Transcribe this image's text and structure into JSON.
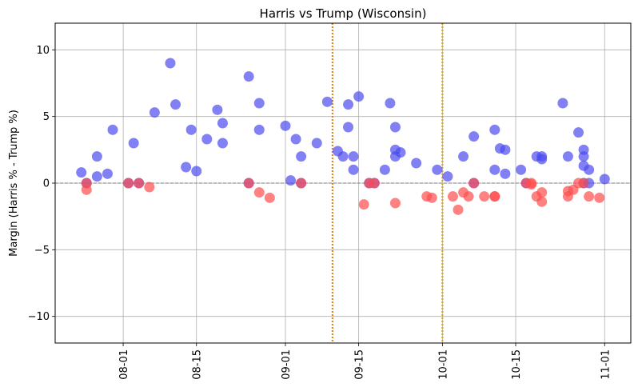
{
  "chart_data": {
    "type": "scatter",
    "title": "Harris vs Trump (Wisconsin)",
    "xlabel": "",
    "ylabel": "Margin (Harris % - Trump %)",
    "x_type": "date",
    "xlim": [
      "2024-07-19",
      "2024-11-06"
    ],
    "ylim": [
      -12,
      12
    ],
    "grid": true,
    "x_ticks": [
      {
        "date": "2024-08-01",
        "label": "08-01"
      },
      {
        "date": "2024-08-15",
        "label": "08-15"
      },
      {
        "date": "2024-09-01",
        "label": "09-01"
      },
      {
        "date": "2024-09-15",
        "label": "09-15"
      },
      {
        "date": "2024-10-01",
        "label": "10-01"
      },
      {
        "date": "2024-10-15",
        "label": "10-15"
      },
      {
        "date": "2024-11-01",
        "label": "11-01"
      }
    ],
    "y_ticks": [
      {
        "value": -10,
        "label": "−10"
      },
      {
        "value": -5,
        "label": "−5"
      },
      {
        "value": 0,
        "label": "0"
      },
      {
        "value": 5,
        "label": "5"
      },
      {
        "value": 10,
        "label": "10"
      }
    ],
    "zero_line": {
      "value": 0,
      "color": "#808080"
    },
    "vertical_lines": [
      {
        "date": "2024-09-10",
        "color": "#e08a1e"
      },
      {
        "date": "2024-10-01",
        "color": "#d9a520"
      }
    ],
    "series": [
      {
        "color": "#4b4bf0",
        "points": [
          {
            "x": "2024-07-24",
            "y": 0.8
          },
          {
            "x": "2024-07-25",
            "y": 0.0
          },
          {
            "x": "2024-07-27",
            "y": 2.0
          },
          {
            "x": "2024-07-27",
            "y": 0.5
          },
          {
            "x": "2024-07-29",
            "y": 0.7
          },
          {
            "x": "2024-07-30",
            "y": 4.0
          },
          {
            "x": "2024-08-02",
            "y": 0.0
          },
          {
            "x": "2024-08-03",
            "y": 3.0
          },
          {
            "x": "2024-08-04",
            "y": 0.0
          },
          {
            "x": "2024-08-07",
            "y": 5.3
          },
          {
            "x": "2024-08-10",
            "y": 9.0
          },
          {
            "x": "2024-08-11",
            "y": 5.9
          },
          {
            "x": "2024-08-13",
            "y": 1.2
          },
          {
            "x": "2024-08-14",
            "y": 4.0
          },
          {
            "x": "2024-08-15",
            "y": 0.9
          },
          {
            "x": "2024-08-17",
            "y": 3.3
          },
          {
            "x": "2024-08-19",
            "y": 5.5
          },
          {
            "x": "2024-08-20",
            "y": 4.5
          },
          {
            "x": "2024-08-20",
            "y": 3.0
          },
          {
            "x": "2024-08-25",
            "y": 8.0
          },
          {
            "x": "2024-08-25",
            "y": 0.0
          },
          {
            "x": "2024-08-27",
            "y": 6.0
          },
          {
            "x": "2024-08-27",
            "y": 4.0
          },
          {
            "x": "2024-09-01",
            "y": 4.3
          },
          {
            "x": "2024-09-02",
            "y": 0.2
          },
          {
            "x": "2024-09-03",
            "y": 3.3
          },
          {
            "x": "2024-09-04",
            "y": 2.0
          },
          {
            "x": "2024-09-04",
            "y": 0.0
          },
          {
            "x": "2024-09-07",
            "y": 3.0
          },
          {
            "x": "2024-09-09",
            "y": 6.1
          },
          {
            "x": "2024-09-11",
            "y": 2.4
          },
          {
            "x": "2024-09-12",
            "y": 2.0
          },
          {
            "x": "2024-09-13",
            "y": 5.9
          },
          {
            "x": "2024-09-13",
            "y": 4.2
          },
          {
            "x": "2024-09-14",
            "y": 1.0
          },
          {
            "x": "2024-09-14",
            "y": 2.0
          },
          {
            "x": "2024-09-15",
            "y": 6.5
          },
          {
            "x": "2024-09-17",
            "y": 0.0
          },
          {
            "x": "2024-09-18",
            "y": 0.0
          },
          {
            "x": "2024-09-20",
            "y": 1.0
          },
          {
            "x": "2024-09-21",
            "y": 6.0
          },
          {
            "x": "2024-09-22",
            "y": 2.5
          },
          {
            "x": "2024-09-22",
            "y": 4.2
          },
          {
            "x": "2024-09-22",
            "y": 2.0
          },
          {
            "x": "2024-09-23",
            "y": 2.3
          },
          {
            "x": "2024-09-26",
            "y": 1.5
          },
          {
            "x": "2024-09-30",
            "y": 1.0
          },
          {
            "x": "2024-10-02",
            "y": 0.5
          },
          {
            "x": "2024-10-05",
            "y": 2.0
          },
          {
            "x": "2024-10-07",
            "y": 3.5
          },
          {
            "x": "2024-10-07",
            "y": 0.0
          },
          {
            "x": "2024-10-11",
            "y": 4.0
          },
          {
            "x": "2024-10-11",
            "y": 1.0
          },
          {
            "x": "2024-10-12",
            "y": 2.6
          },
          {
            "x": "2024-10-13",
            "y": 2.5
          },
          {
            "x": "2024-10-13",
            "y": 0.7
          },
          {
            "x": "2024-10-16",
            "y": 1.0
          },
          {
            "x": "2024-10-17",
            "y": 0.0
          },
          {
            "x": "2024-10-19",
            "y": 2.0
          },
          {
            "x": "2024-10-20",
            "y": 2.0
          },
          {
            "x": "2024-10-20",
            "y": 1.8
          },
          {
            "x": "2024-10-24",
            "y": 6.0
          },
          {
            "x": "2024-10-25",
            "y": 2.0
          },
          {
            "x": "2024-10-27",
            "y": 3.8
          },
          {
            "x": "2024-10-28",
            "y": 2.0
          },
          {
            "x": "2024-10-28",
            "y": 0.0
          },
          {
            "x": "2024-10-28",
            "y": 2.5
          },
          {
            "x": "2024-10-28",
            "y": 1.3
          },
          {
            "x": "2024-10-29",
            "y": 1.0
          },
          {
            "x": "2024-10-29",
            "y": 0.0
          },
          {
            "x": "2024-11-01",
            "y": 0.3
          }
        ]
      },
      {
        "color": "#ff4d4d",
        "points": [
          {
            "x": "2024-07-25",
            "y": 0.0
          },
          {
            "x": "2024-07-25",
            "y": -0.5
          },
          {
            "x": "2024-08-02",
            "y": 0.0
          },
          {
            "x": "2024-08-04",
            "y": 0.0
          },
          {
            "x": "2024-08-06",
            "y": -0.3
          },
          {
            "x": "2024-08-25",
            "y": 0.0
          },
          {
            "x": "2024-08-27",
            "y": -0.7
          },
          {
            "x": "2024-08-29",
            "y": -1.1
          },
          {
            "x": "2024-09-04",
            "y": 0.0
          },
          {
            "x": "2024-09-16",
            "y": -1.6
          },
          {
            "x": "2024-09-17",
            "y": 0.0
          },
          {
            "x": "2024-09-18",
            "y": 0.0
          },
          {
            "x": "2024-09-22",
            "y": -1.5
          },
          {
            "x": "2024-09-28",
            "y": -1.0
          },
          {
            "x": "2024-09-29",
            "y": -1.1
          },
          {
            "x": "2024-10-03",
            "y": -1.0
          },
          {
            "x": "2024-10-04",
            "y": -2.0
          },
          {
            "x": "2024-10-05",
            "y": -0.7
          },
          {
            "x": "2024-10-06",
            "y": -1.0
          },
          {
            "x": "2024-10-07",
            "y": 0.0
          },
          {
            "x": "2024-10-09",
            "y": -1.0
          },
          {
            "x": "2024-10-11",
            "y": -1.0
          },
          {
            "x": "2024-10-11",
            "y": -1.0
          },
          {
            "x": "2024-10-17",
            "y": 0.0
          },
          {
            "x": "2024-10-18",
            "y": 0.0
          },
          {
            "x": "2024-10-18",
            "y": -0.1
          },
          {
            "x": "2024-10-19",
            "y": -1.0
          },
          {
            "x": "2024-10-20",
            "y": -0.7
          },
          {
            "x": "2024-10-20",
            "y": -1.4
          },
          {
            "x": "2024-10-25",
            "y": -0.6
          },
          {
            "x": "2024-10-25",
            "y": -1.0
          },
          {
            "x": "2024-10-26",
            "y": -0.5
          },
          {
            "x": "2024-10-27",
            "y": 0.0
          },
          {
            "x": "2024-10-28",
            "y": 0.0
          },
          {
            "x": "2024-10-29",
            "y": -1.0
          },
          {
            "x": "2024-10-31",
            "y": -1.1
          }
        ]
      }
    ]
  }
}
